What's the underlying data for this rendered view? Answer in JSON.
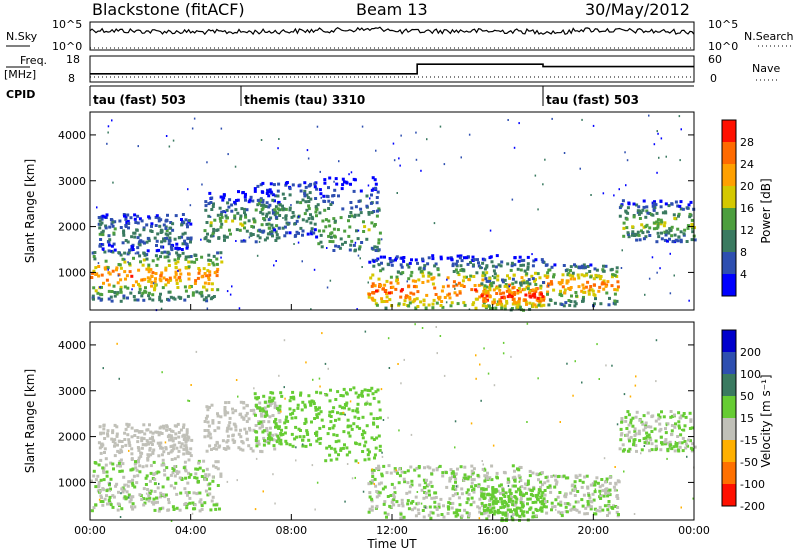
{
  "header": {
    "station": "Blackstone (fitACF)",
    "beam": "Beam 13",
    "date": "30/May/2012"
  },
  "scalars": {
    "nsky_label": "N.Sky",
    "nsky_ticks": [
      "10^5",
      "10^0"
    ],
    "nsearch_label": "N.Search",
    "nsearch_ticks": [
      "10^5",
      "10^0"
    ],
    "freq_label": "Freq.",
    "freq_unit": "[MHz]",
    "freq_ticks": [
      "18",
      "8"
    ],
    "nave_label": "Nave",
    "nave_ticks": [
      "60",
      "0"
    ],
    "cpid_label": "CPID",
    "cpid_segments": [
      {
        "label": "tau (fast) 503",
        "start_hour": 0,
        "end_hour": 6
      },
      {
        "label": "themis (tau) 3310",
        "start_hour": 6,
        "end_hour": 18
      },
      {
        "label": "tau (fast) 503",
        "start_hour": 18,
        "end_hour": 24
      }
    ],
    "freq_steps": [
      {
        "start_hour": 0,
        "end_hour": 13,
        "mhz": 11
      },
      {
        "start_hour": 13,
        "end_hour": 18,
        "mhz": 15
      },
      {
        "start_hour": 18,
        "end_hour": 24,
        "mhz": 14
      }
    ]
  },
  "chart_data": [
    {
      "type": "heatmap",
      "quantity": "Power",
      "ylabel": "Slant Range [km]",
      "xlabel": "",
      "xlim": [
        0,
        24
      ],
      "ylim": [
        180,
        4500
      ],
      "yticks": [
        "1000",
        "2000",
        "3000",
        "4000"
      ],
      "colorbar_label": "Power [dB]",
      "colorbar_ticks": [
        "4",
        "8",
        "12",
        "16",
        "20",
        "24",
        "28"
      ],
      "colorbar_range": [
        0,
        30
      ],
      "colors": [
        "#0000ff",
        "#2e4fb0",
        "#3a7a60",
        "#4c9e3e",
        "#d4c800",
        "#ffa000",
        "#ff6a00",
        "#ff1000"
      ],
      "echo_regions": [
        {
          "t0": 0.0,
          "t1": 5.2,
          "r0": 400,
          "r1": 1500,
          "peak_r": 950,
          "level": 24
        },
        {
          "t0": 0.3,
          "t1": 4.0,
          "r0": 1500,
          "r1": 2300,
          "peak_r": 1900,
          "level": 10
        },
        {
          "t0": 4.5,
          "t1": 7.5,
          "r0": 1700,
          "r1": 2800,
          "peak_r": 2100,
          "level": 14
        },
        {
          "t0": 6.5,
          "t1": 9.0,
          "r0": 1800,
          "r1": 3000,
          "peak_r": 2400,
          "level": 12
        },
        {
          "t0": 9.0,
          "t1": 11.5,
          "r0": 1500,
          "r1": 3100,
          "peak_r": 2000,
          "level": 14
        },
        {
          "t0": 11.0,
          "t1": 18.0,
          "r0": 250,
          "r1": 1400,
          "peak_r": 650,
          "level": 26
        },
        {
          "t0": 15.5,
          "t1": 18.0,
          "r0": 200,
          "r1": 900,
          "peak_r": 500,
          "level": 28
        },
        {
          "t0": 18.0,
          "t1": 21.0,
          "r0": 300,
          "r1": 1200,
          "peak_r": 750,
          "level": 24
        },
        {
          "t0": 21.0,
          "t1": 24.0,
          "r0": 1700,
          "r1": 2600,
          "peak_r": 2100,
          "level": 16
        }
      ]
    },
    {
      "type": "heatmap",
      "quantity": "Velocity",
      "ylabel": "Slant Range [km]",
      "xlabel": "Time UT",
      "xlim": [
        0,
        24
      ],
      "ylim": [
        180,
        4500
      ],
      "xticks": [
        "00:00",
        "04:00",
        "08:00",
        "12:00",
        "16:00",
        "20:00",
        "00:00"
      ],
      "yticks": [
        "1000",
        "2000",
        "3000",
        "4000"
      ],
      "colorbar_label": "Velocity [m s⁻¹]",
      "colorbar_ticks": [
        "200",
        "100",
        "50",
        "15",
        "-15",
        "-50",
        "-100",
        "-200"
      ],
      "colorbar_range": [
        -250,
        250
      ],
      "colors": [
        "#0000cc",
        "#2e4fb0",
        "#3a7a60",
        "#66cc33",
        "#c0c0b8",
        "#ffb000",
        "#ff7000",
        "#ff1000"
      ],
      "echo_regions": [
        {
          "t0": 0.0,
          "t1": 5.2,
          "r0": 400,
          "r1": 1500,
          "peak_r": 950,
          "level": 0
        },
        {
          "t0": 0.3,
          "t1": 4.0,
          "r0": 1500,
          "r1": 2300,
          "peak_r": 1900,
          "level": -20
        },
        {
          "t0": 4.5,
          "t1": 7.5,
          "r0": 1700,
          "r1": 2800,
          "peak_r": 2100,
          "level": -40
        },
        {
          "t0": 6.5,
          "t1": 9.0,
          "r0": 1800,
          "r1": 3000,
          "peak_r": 2400,
          "level": 25
        },
        {
          "t0": 9.0,
          "t1": 11.5,
          "r0": 1500,
          "r1": 3100,
          "peak_r": 2000,
          "level": 30
        },
        {
          "t0": 11.0,
          "t1": 18.0,
          "r0": 250,
          "r1": 1400,
          "peak_r": 650,
          "level": 0
        },
        {
          "t0": 15.5,
          "t1": 18.0,
          "r0": 200,
          "r1": 900,
          "peak_r": 500,
          "level": 20
        },
        {
          "t0": 18.0,
          "t1": 21.0,
          "r0": 300,
          "r1": 1200,
          "peak_r": 750,
          "level": 0
        },
        {
          "t0": 21.0,
          "t1": 24.0,
          "r0": 1700,
          "r1": 2600,
          "peak_r": 2100,
          "level": 0
        }
      ]
    }
  ]
}
